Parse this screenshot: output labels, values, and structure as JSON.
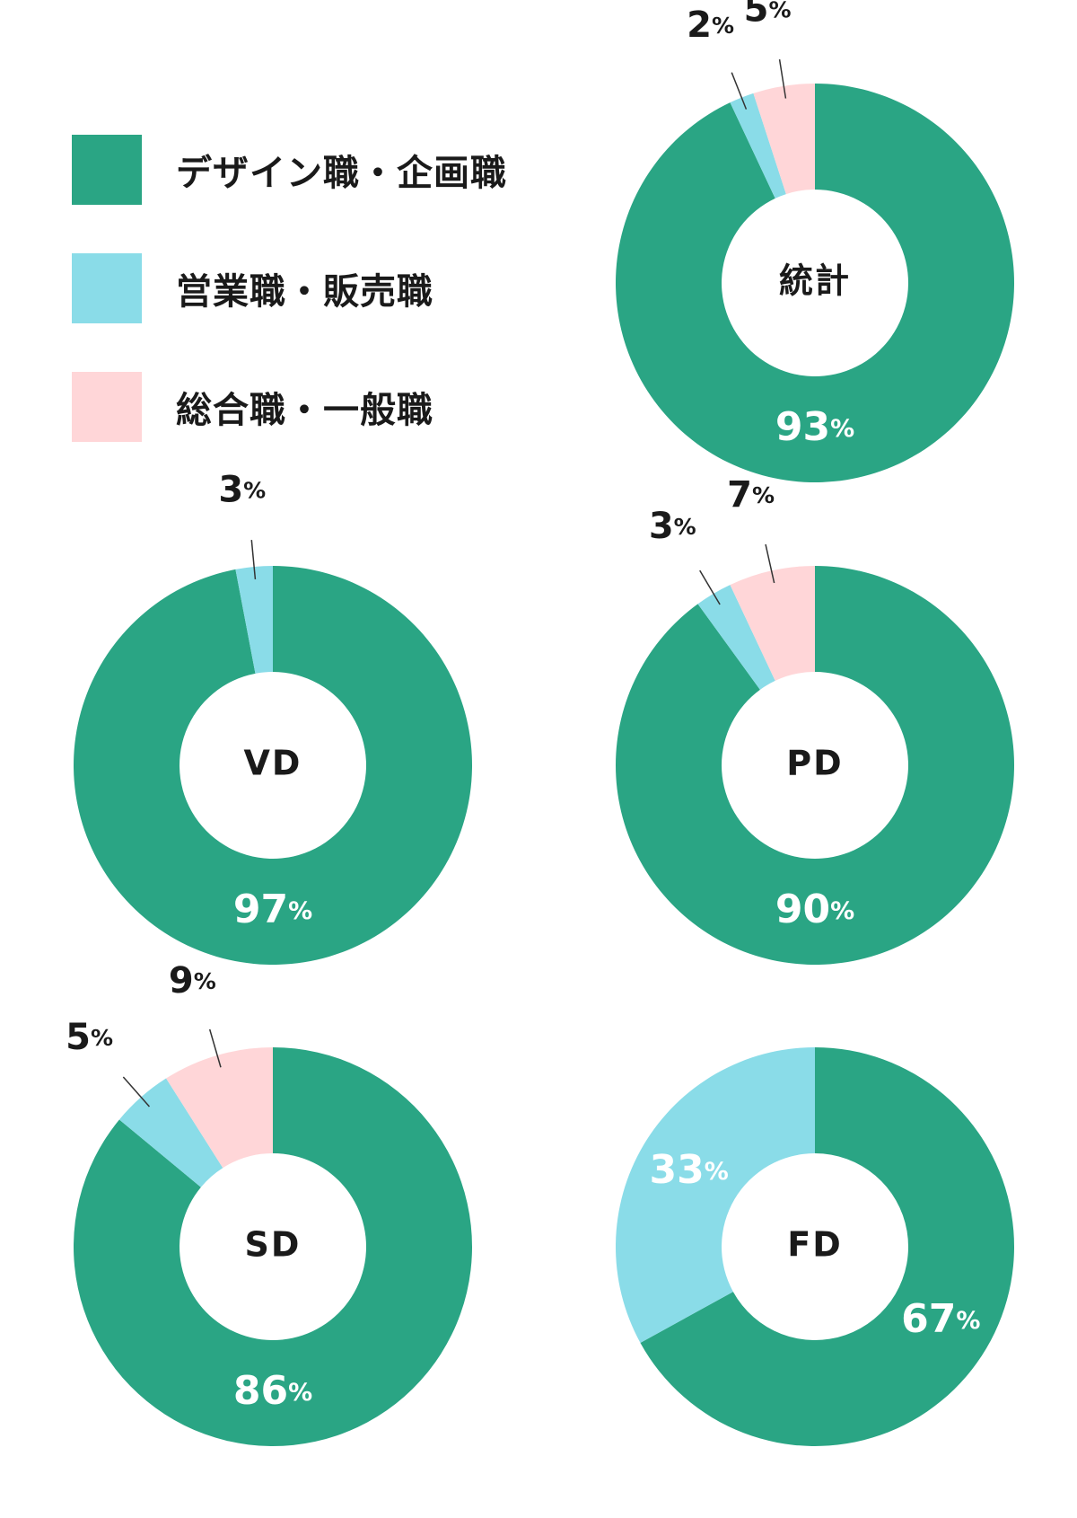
{
  "colors": {
    "design": "#2aa584",
    "sales": "#8adce8",
    "general": "#ffd6d8",
    "text": "#1a1a1a",
    "inner_label": "#ffffff"
  },
  "legend": [
    {
      "key": "design",
      "label": "デザイン職・企画職"
    },
    {
      "key": "sales",
      "label": "営業職・販売職"
    },
    {
      "key": "general",
      "label": "総合職・一般職"
    }
  ],
  "chart_data": [
    {
      "type": "pie",
      "donut": true,
      "center_label": "統計",
      "slices": [
        {
          "key": "design",
          "value": 93,
          "label": "93%"
        },
        {
          "key": "sales",
          "value": 2,
          "label": "2%"
        },
        {
          "key": "general",
          "value": 5,
          "label": "5%"
        }
      ]
    },
    {
      "type": "pie",
      "donut": true,
      "center_label": "VD",
      "slices": [
        {
          "key": "design",
          "value": 97,
          "label": "97%"
        },
        {
          "key": "sales",
          "value": 3,
          "label": "3%"
        }
      ]
    },
    {
      "type": "pie",
      "donut": true,
      "center_label": "PD",
      "slices": [
        {
          "key": "design",
          "value": 90,
          "label": "90%"
        },
        {
          "key": "sales",
          "value": 3,
          "label": "3%"
        },
        {
          "key": "general",
          "value": 7,
          "label": "7%"
        }
      ]
    },
    {
      "type": "pie",
      "donut": true,
      "center_label": "SD",
      "slices": [
        {
          "key": "design",
          "value": 86,
          "label": "86%"
        },
        {
          "key": "sales",
          "value": 5,
          "label": "5%"
        },
        {
          "key": "general",
          "value": 9,
          "label": "9%"
        }
      ]
    },
    {
      "type": "pie",
      "donut": true,
      "center_label": "FD",
      "slices": [
        {
          "key": "design",
          "value": 67,
          "label": "67%"
        },
        {
          "key": "sales",
          "value": 33,
          "label": "33%"
        }
      ]
    }
  ]
}
